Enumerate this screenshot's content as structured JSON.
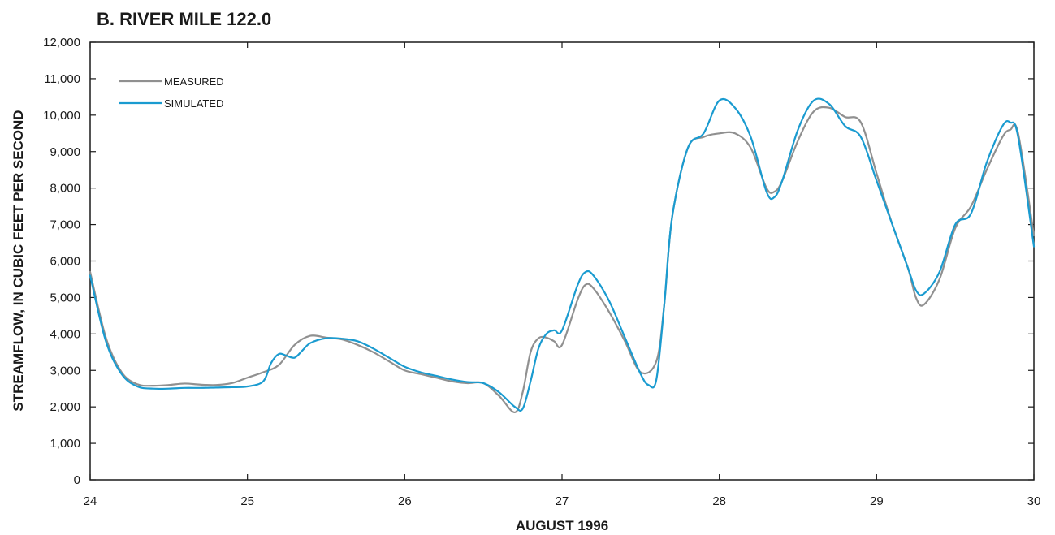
{
  "chart_data": {
    "type": "line",
    "title": "B. RIVER MILE 122.0",
    "xlabel": "AUGUST 1996",
    "ylabel": "STREAMFLOW, IN CUBIC FEET PER SECOND",
    "xlim": [
      24,
      30
    ],
    "ylim": [
      0,
      12000
    ],
    "x_ticks": [
      24,
      25,
      26,
      27,
      28,
      29,
      30
    ],
    "x_tick_labels": [
      "24",
      "25",
      "26",
      "27",
      "28",
      "29",
      "30"
    ],
    "y_ticks": [
      0,
      1000,
      2000,
      3000,
      4000,
      5000,
      6000,
      7000,
      8000,
      9000,
      10000,
      11000,
      12000
    ],
    "y_tick_labels": [
      "0",
      "1,000",
      "2,000",
      "3,000",
      "4,000",
      "5,000",
      "6,000",
      "7,000",
      "8,000",
      "9,000",
      "10,000",
      "11,000",
      "12,000"
    ],
    "grid": false,
    "legend_position": "top-left",
    "series": [
      {
        "name": "MEASURED",
        "color": "#909090",
        "x": [
          24.0,
          24.1,
          24.2,
          24.3,
          24.4,
          24.5,
          24.6,
          24.7,
          24.8,
          24.9,
          25.0,
          25.1,
          25.2,
          25.3,
          25.4,
          25.5,
          25.6,
          25.7,
          25.8,
          25.9,
          26.0,
          26.1,
          26.2,
          26.3,
          26.4,
          26.5,
          26.6,
          26.7,
          26.75,
          26.8,
          26.85,
          26.9,
          26.95,
          27.0,
          27.1,
          27.15,
          27.2,
          27.3,
          27.4,
          27.5,
          27.6,
          27.65,
          27.7,
          27.8,
          27.9,
          28.0,
          28.1,
          28.2,
          28.3,
          28.35,
          28.4,
          28.5,
          28.6,
          28.7,
          28.8,
          28.9,
          29.0,
          29.1,
          29.2,
          29.25,
          29.3,
          29.4,
          29.5,
          29.6,
          29.7,
          29.8,
          29.85,
          29.9,
          30.0
        ],
        "y": [
          5700,
          3900,
          2950,
          2620,
          2580,
          2600,
          2640,
          2610,
          2600,
          2650,
          2800,
          2950,
          3150,
          3700,
          3950,
          3900,
          3850,
          3700,
          3500,
          3250,
          3000,
          2900,
          2800,
          2700,
          2650,
          2650,
          2300,
          1850,
          2400,
          3500,
          3880,
          3900,
          3800,
          3700,
          4950,
          5350,
          5250,
          4600,
          3800,
          2950,
          3250,
          4800,
          7200,
          9100,
          9400,
          9500,
          9500,
          9100,
          8000,
          7900,
          8200,
          9300,
          10100,
          10200,
          9950,
          9800,
          8400,
          7000,
          5800,
          5000,
          4800,
          5500,
          6900,
          7500,
          8500,
          9400,
          9600,
          9500,
          6700
        ]
      },
      {
        "name": "SIMULATED",
        "color": "#1a9bd0",
        "x": [
          24.0,
          24.1,
          24.2,
          24.3,
          24.4,
          24.5,
          24.6,
          24.7,
          24.8,
          24.9,
          25.0,
          25.1,
          25.15,
          25.2,
          25.25,
          25.3,
          25.35,
          25.4,
          25.5,
          25.6,
          25.7,
          25.8,
          25.9,
          26.0,
          26.1,
          26.2,
          26.3,
          26.4,
          26.5,
          26.6,
          26.7,
          26.75,
          26.8,
          26.85,
          26.9,
          26.95,
          27.0,
          27.1,
          27.15,
          27.2,
          27.3,
          27.4,
          27.5,
          27.55,
          27.6,
          27.65,
          27.7,
          27.8,
          27.9,
          28.0,
          28.1,
          28.2,
          28.3,
          28.35,
          28.4,
          28.5,
          28.6,
          28.7,
          28.8,
          28.9,
          29.0,
          29.1,
          29.2,
          29.25,
          29.3,
          29.4,
          29.5,
          29.6,
          29.7,
          29.8,
          29.85,
          29.9,
          30.0
        ],
        "y": [
          5600,
          3800,
          2900,
          2560,
          2500,
          2500,
          2520,
          2520,
          2530,
          2540,
          2560,
          2700,
          3200,
          3450,
          3400,
          3350,
          3550,
          3750,
          3880,
          3870,
          3800,
          3600,
          3350,
          3100,
          2950,
          2850,
          2750,
          2680,
          2650,
          2400,
          2000,
          1950,
          2700,
          3600,
          4000,
          4100,
          4100,
          5350,
          5700,
          5600,
          4900,
          3900,
          2900,
          2600,
          2750,
          4800,
          7200,
          9100,
          9500,
          10400,
          10200,
          9400,
          7900,
          7750,
          8200,
          9600,
          10400,
          10300,
          9700,
          9400,
          8200,
          7000,
          5800,
          5200,
          5100,
          5700,
          7000,
          7300,
          8700,
          9700,
          9800,
          9400,
          6400
        ]
      }
    ]
  }
}
